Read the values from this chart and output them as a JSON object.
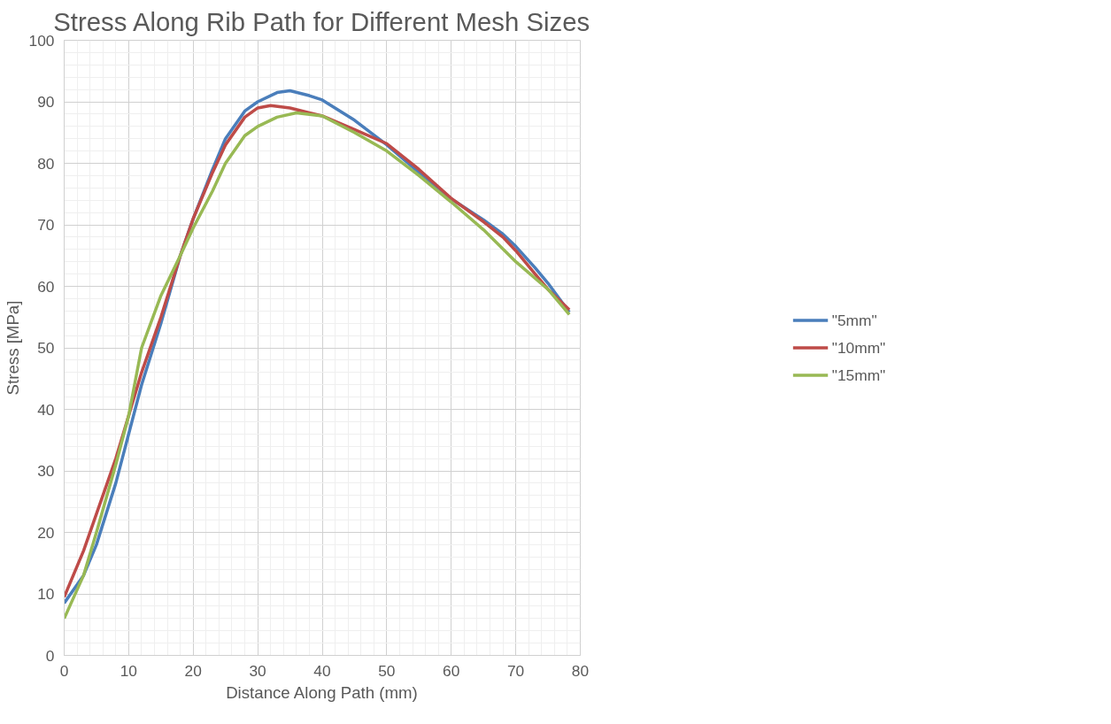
{
  "chart_data": {
    "type": "line",
    "title": "Stress Along Rib Path for Different Mesh Sizes",
    "xlabel": "Distance Along Path (mm)",
    "ylabel": "Stress [MPa]",
    "xlim": [
      0,
      80
    ],
    "xticks": [
      0,
      10,
      20,
      30,
      40,
      50,
      60,
      70,
      80
    ],
    "ylim": [
      0,
      100
    ],
    "yticks": [
      0,
      10,
      20,
      30,
      40,
      50,
      60,
      70,
      80,
      90,
      100
    ],
    "grid": true,
    "legend": "right",
    "marker": "none",
    "line_style": "solid",
    "series": [
      {
        "name": "\"5mm\"",
        "color": "#4a7ebb",
        "x": [
          0,
          3,
          5,
          8,
          10,
          12,
          15,
          18,
          20,
          23,
          25,
          28,
          30,
          33,
          35,
          38,
          40,
          45,
          50,
          55,
          60,
          65,
          68,
          70,
          73,
          75,
          78.3
        ],
        "values": [
          8.5,
          13,
          18,
          28,
          36,
          44,
          54,
          65,
          71,
          79,
          84,
          88.5,
          90,
          91.5,
          91.8,
          91,
          90.3,
          87,
          83,
          78.5,
          74.2,
          70.8,
          68.5,
          66.5,
          63,
          60.5,
          55.8
        ]
      },
      {
        "name": "\"10mm\"",
        "color": "#be4b48",
        "x": [
          0,
          3,
          5,
          8,
          10,
          12,
          15,
          18,
          20,
          23,
          25,
          28,
          30,
          32,
          35,
          38,
          40,
          45,
          50,
          55,
          60,
          65,
          68,
          70,
          73,
          75,
          78.3
        ],
        "values": [
          9.5,
          17,
          23,
          32,
          39,
          46,
          55,
          65,
          71,
          78.5,
          83,
          87.5,
          89,
          89.4,
          89,
          88.2,
          87.7,
          85.5,
          83.2,
          79,
          74.3,
          70.5,
          68,
          65.8,
          62,
          59.5,
          56.2
        ]
      },
      {
        "name": "\"15mm\"",
        "color": "#98b954",
        "x": [
          0,
          3,
          5,
          8,
          10,
          12,
          15,
          18,
          20,
          23,
          25,
          28,
          30,
          33,
          36,
          40,
          45,
          50,
          55,
          60,
          65,
          70,
          75,
          78.3
        ],
        "values": [
          6,
          13,
          20,
          31,
          39,
          50,
          58.5,
          65,
          69.5,
          75.5,
          80,
          84.5,
          86,
          87.5,
          88.2,
          87.7,
          85,
          82,
          78,
          73.7,
          69.2,
          64,
          59.5,
          55.4
        ]
      }
    ]
  }
}
